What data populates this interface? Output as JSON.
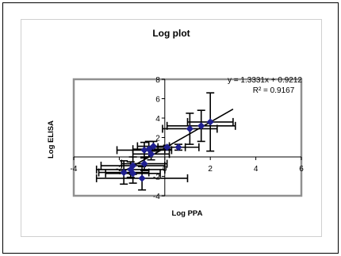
{
  "chart_data": {
    "type": "scatter",
    "title": "Log plot",
    "xlabel": "Log PPA",
    "ylabel": "Log ELISA",
    "xlim": [
      -4,
      6
    ],
    "ylim": [
      -4,
      8
    ],
    "xticks": [
      "-4",
      "-2",
      "0",
      "2",
      "4",
      "6"
    ],
    "yticks": [
      "-4",
      "-2",
      "0",
      "2",
      "4",
      "6",
      "8"
    ],
    "grid": false,
    "legend": "none",
    "marker_color": "#1f1f8f",
    "trendline": {
      "slope": 1.3331,
      "intercept": 0.9212,
      "r2": 0.9167,
      "equation_label": "y = 1.3331x + 0.9212",
      "r2_label": "R² = 0.9167"
    },
    "points": [
      {
        "x": 2.0,
        "y": 3.6,
        "xerr": 1.0,
        "yerr": 3.0
      },
      {
        "x": 1.6,
        "y": 3.2,
        "xerr": 1.5,
        "yerr": 1.6
      },
      {
        "x": 1.1,
        "y": 2.9,
        "xerr": 1.2,
        "yerr": 1.6
      },
      {
        "x": 0.6,
        "y": 1.0,
        "xerr": 0.9,
        "yerr": 0.3
      },
      {
        "x": 0.1,
        "y": 1.0,
        "xerr": 0.8,
        "yerr": 0.2
      },
      {
        "x": -0.5,
        "y": 1.1,
        "xerr": 0.7,
        "yerr": 0.5
      },
      {
        "x": -0.7,
        "y": 0.8,
        "xerr": 0.7,
        "yerr": 0.8
      },
      {
        "x": -0.9,
        "y": 0.7,
        "xerr": 1.2,
        "yerr": 0.8
      },
      {
        "x": -0.6,
        "y": 0.3,
        "xerr": 0.8,
        "yerr": 0.6
      },
      {
        "x": -0.9,
        "y": -0.7,
        "xerr": 1.0,
        "yerr": 0.7
      },
      {
        "x": -1.4,
        "y": -0.9,
        "xerr": 1.4,
        "yerr": 0.9
      },
      {
        "x": -1.5,
        "y": -1.3,
        "xerr": 1.5,
        "yerr": 0.8
      },
      {
        "x": -1.4,
        "y": -1.7,
        "xerr": 1.2,
        "yerr": 1.0
      },
      {
        "x": -1.8,
        "y": -1.6,
        "xerr": 1.1,
        "yerr": 1.2
      },
      {
        "x": -1.0,
        "y": -2.2,
        "xerr": 2.0,
        "yerr": 1.2
      }
    ]
  }
}
